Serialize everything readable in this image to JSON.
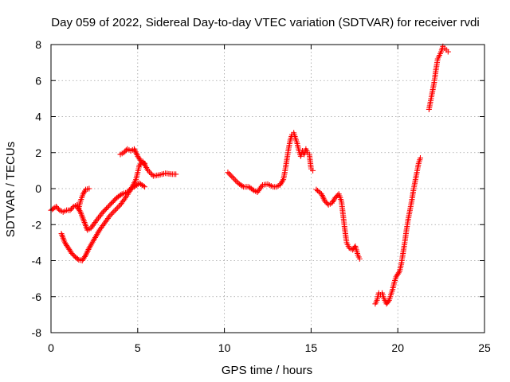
{
  "chart_data": {
    "type": "scatter",
    "title": "Day 059 of 2022, Sidereal Day-to-day VTEC variation (SDTVAR) for receiver rvdi",
    "xlabel": "GPS time / hours",
    "ylabel": "SDTVAR / TECUs",
    "xlim": [
      0,
      25
    ],
    "ylim": [
      -8,
      8
    ],
    "x_ticks": [
      "0",
      "5",
      "10",
      "15",
      "20",
      "25"
    ],
    "y_ticks": [
      "-8",
      "-6",
      "-4",
      "-2",
      "0",
      "2",
      "4",
      "6",
      "8"
    ],
    "grid": true,
    "marker": "+",
    "color": "#ff0000",
    "series": [
      {
        "points": [
          [
            0.0,
            -1.2
          ],
          [
            0.3,
            -1.0
          ],
          [
            0.5,
            -1.2
          ],
          [
            0.7,
            -1.3
          ],
          [
            0.9,
            -1.2
          ],
          [
            1.1,
            -1.2
          ],
          [
            1.3,
            -1.0
          ],
          [
            1.5,
            -0.9
          ],
          [
            1.6,
            -1.1
          ],
          [
            1.7,
            -0.7
          ],
          [
            1.85,
            -0.3
          ],
          [
            2.0,
            -0.05
          ],
          [
            2.2,
            0.0
          ]
        ]
      },
      {
        "points": [
          [
            0.6,
            -2.5
          ],
          [
            0.8,
            -3.0
          ],
          [
            1.0,
            -3.3
          ],
          [
            1.2,
            -3.6
          ],
          [
            1.4,
            -3.8
          ],
          [
            1.6,
            -3.95
          ],
          [
            1.8,
            -4.0
          ],
          [
            2.0,
            -3.7
          ],
          [
            2.2,
            -3.3
          ],
          [
            2.5,
            -2.8
          ],
          [
            2.8,
            -2.3
          ],
          [
            3.1,
            -1.9
          ],
          [
            3.4,
            -1.5
          ],
          [
            3.7,
            -1.2
          ],
          [
            4.0,
            -0.9
          ],
          [
            4.3,
            -0.5
          ],
          [
            4.6,
            -0.05
          ],
          [
            4.9,
            0.5
          ],
          [
            5.0,
            0.9
          ],
          [
            5.1,
            1.3
          ],
          [
            5.3,
            1.5
          ],
          [
            5.6,
            1.0
          ],
          [
            5.9,
            0.7
          ],
          [
            6.2,
            0.75
          ],
          [
            6.6,
            0.85
          ],
          [
            7.0,
            0.8
          ],
          [
            7.2,
            0.8
          ]
        ]
      },
      {
        "points": [
          [
            1.5,
            -1.0
          ],
          [
            1.7,
            -1.3
          ],
          [
            1.9,
            -1.8
          ],
          [
            2.1,
            -2.3
          ],
          [
            2.3,
            -2.2
          ],
          [
            2.6,
            -1.8
          ],
          [
            3.0,
            -1.3
          ],
          [
            3.4,
            -0.9
          ],
          [
            3.8,
            -0.5
          ],
          [
            4.1,
            -0.3
          ],
          [
            4.4,
            -0.2
          ],
          [
            4.6,
            0.0
          ],
          [
            4.8,
            0.1
          ],
          [
            5.1,
            0.3
          ],
          [
            5.4,
            0.1
          ]
        ]
      },
      {
        "points": [
          [
            4.0,
            1.9
          ],
          [
            4.2,
            2.0
          ],
          [
            4.4,
            2.2
          ],
          [
            4.6,
            2.1
          ],
          [
            4.8,
            2.2
          ],
          [
            5.0,
            1.8
          ],
          [
            5.2,
            1.5
          ],
          [
            5.4,
            1.4
          ]
        ]
      },
      {
        "points": [
          [
            10.2,
            0.9
          ],
          [
            10.5,
            0.6
          ],
          [
            10.8,
            0.3
          ],
          [
            11.1,
            0.1
          ],
          [
            11.4,
            0.1
          ],
          [
            11.7,
            -0.1
          ],
          [
            11.9,
            -0.2
          ],
          [
            12.2,
            0.2
          ],
          [
            12.5,
            0.25
          ],
          [
            12.8,
            0.1
          ],
          [
            13.0,
            0.1
          ],
          [
            13.2,
            0.2
          ],
          [
            13.4,
            0.5
          ],
          [
            13.5,
            1.0
          ],
          [
            13.6,
            1.6
          ],
          [
            13.7,
            2.2
          ],
          [
            13.8,
            2.7
          ],
          [
            13.9,
            3.0
          ],
          [
            14.0,
            3.1
          ],
          [
            14.1,
            2.8
          ],
          [
            14.2,
            2.5
          ],
          [
            14.3,
            2.1
          ],
          [
            14.4,
            1.8
          ],
          [
            14.5,
            2.1
          ],
          [
            14.6,
            1.9
          ],
          [
            14.7,
            2.2
          ],
          [
            14.8,
            2.0
          ],
          [
            14.9,
            1.9
          ],
          [
            15.0,
            1.1
          ],
          [
            15.1,
            1.0
          ]
        ]
      },
      {
        "points": [
          [
            15.3,
            -0.05
          ],
          [
            15.6,
            -0.3
          ],
          [
            15.8,
            -0.7
          ],
          [
            16.0,
            -0.9
          ],
          [
            16.2,
            -0.8
          ],
          [
            16.4,
            -0.5
          ],
          [
            16.6,
            -0.3
          ],
          [
            16.75,
            -0.7
          ],
          [
            16.85,
            -1.5
          ],
          [
            16.95,
            -2.3
          ],
          [
            17.05,
            -3.0
          ],
          [
            17.2,
            -3.3
          ],
          [
            17.4,
            -3.4
          ],
          [
            17.55,
            -3.2
          ],
          [
            17.7,
            -3.7
          ],
          [
            17.8,
            -3.9
          ]
        ]
      },
      {
        "points": [
          [
            18.7,
            -6.4
          ],
          [
            18.8,
            -6.2
          ],
          [
            18.9,
            -5.8
          ],
          [
            19.0,
            -5.9
          ],
          [
            19.1,
            -5.8
          ],
          [
            19.2,
            -6.1
          ],
          [
            19.35,
            -6.4
          ],
          [
            19.5,
            -6.2
          ],
          [
            19.6,
            -5.9
          ],
          [
            19.7,
            -5.6
          ],
          [
            19.8,
            -5.2
          ],
          [
            19.9,
            -4.9
          ],
          [
            20.1,
            -4.6
          ],
          [
            20.2,
            -4.2
          ],
          [
            20.3,
            -3.6
          ],
          [
            20.4,
            -3.0
          ],
          [
            20.5,
            -2.3
          ],
          [
            20.6,
            -1.7
          ],
          [
            20.7,
            -1.2
          ],
          [
            20.8,
            -0.7
          ],
          [
            20.9,
            -0.1
          ],
          [
            21.0,
            0.4
          ],
          [
            21.1,
            0.9
          ],
          [
            21.2,
            1.4
          ],
          [
            21.3,
            1.7
          ]
        ]
      },
      {
        "points": [
          [
            21.8,
            4.4
          ],
          [
            21.9,
            4.9
          ],
          [
            22.0,
            5.4
          ],
          [
            22.1,
            5.9
          ],
          [
            22.2,
            6.6
          ],
          [
            22.3,
            7.2
          ],
          [
            22.4,
            7.4
          ],
          [
            22.5,
            7.6
          ],
          [
            22.6,
            7.9
          ],
          [
            22.7,
            7.8
          ],
          [
            22.8,
            7.7
          ],
          [
            22.9,
            7.6
          ]
        ]
      }
    ]
  }
}
